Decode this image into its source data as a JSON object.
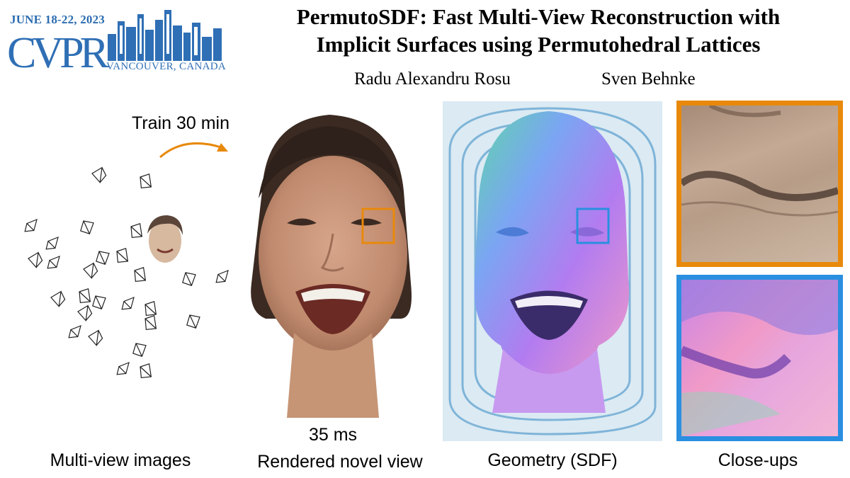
{
  "conference": {
    "dates": "JUNE 18-22, 2023",
    "logo_text": "CVPR",
    "location": "VANCOUVER, CANADA"
  },
  "paper": {
    "title_line1": "PermutoSDF: Fast Multi-View Reconstruction with",
    "title_line2": "Implicit Surfaces using Permutohedral Lattices",
    "authors": [
      "Radu Alexandru Rosu",
      "Sven Behnke"
    ]
  },
  "figure": {
    "train_label": "Train 30 min",
    "render_time": "35 ms",
    "captions": {
      "multiview": "Multi-view images",
      "rendered": "Rendered novel view",
      "geometry": "Geometry (SDF)",
      "closeups": "Close-ups"
    },
    "colors": {
      "accent_orange": "#e8890b",
      "accent_blue": "#2a8fe0",
      "cvpr_blue": "#2f6fb5"
    }
  }
}
